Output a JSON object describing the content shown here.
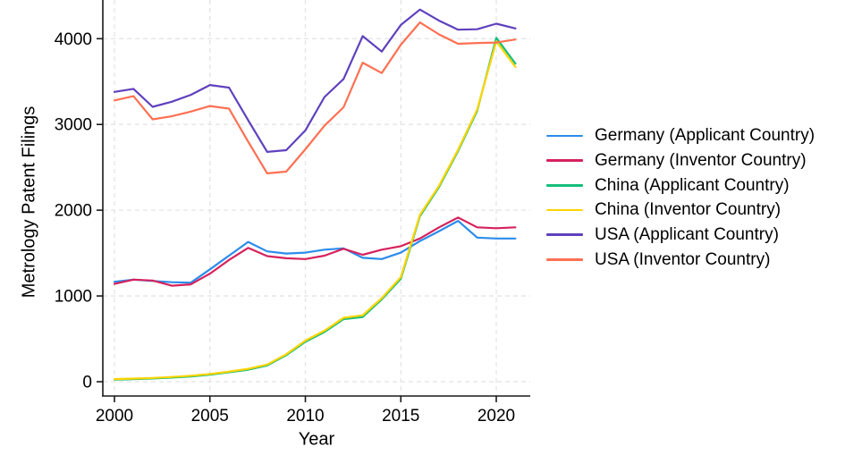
{
  "chart_data": {
    "type": "line",
    "title": "",
    "xlabel": "Year",
    "ylabel": "Metrology Patent Filings",
    "legend_position": "right-center",
    "grid": "light-gray-dashed",
    "background": "#ffffff",
    "x": [
      2000,
      2001,
      2002,
      2003,
      2004,
      2005,
      2006,
      2007,
      2008,
      2009,
      2010,
      2011,
      2012,
      2013,
      2014,
      2015,
      2016,
      2017,
      2018,
      2019,
      2020,
      2021
    ],
    "x_ticks": [
      2000,
      2005,
      2010,
      2015,
      2020
    ],
    "y_ticks": [
      0,
      1000,
      2000,
      3000,
      4000
    ],
    "xlim": [
      2000,
      2021
    ],
    "ylim_visible": [
      0,
      4450
    ],
    "note_top_cropped": true,
    "series": [
      {
        "id": "germany-applicant",
        "label": "Germany (Applicant Country)",
        "color": "#2b8ceb",
        "values": [
          1165,
          1190,
          1175,
          1160,
          1155,
          1310,
          1470,
          1630,
          1520,
          1495,
          1505,
          1540,
          1555,
          1445,
          1430,
          1505,
          1640,
          1755,
          1875,
          1680,
          1670,
          1670
        ]
      },
      {
        "id": "germany-inventor",
        "label": "Germany (Inventor Country)",
        "color": "#d6225c",
        "values": [
          1140,
          1190,
          1180,
          1120,
          1135,
          1260,
          1420,
          1560,
          1465,
          1440,
          1430,
          1470,
          1550,
          1480,
          1540,
          1580,
          1670,
          1800,
          1915,
          1800,
          1790,
          1800
        ]
      },
      {
        "id": "china-applicant",
        "label": "China (Applicant Country)",
        "color": "#12be7c",
        "values": [
          25,
          30,
          38,
          48,
          62,
          82,
          110,
          140,
          190,
          310,
          465,
          580,
          730,
          755,
          960,
          1200,
          1930,
          2270,
          2690,
          3160,
          4010,
          3710
        ]
      },
      {
        "id": "china-inventor",
        "label": "China (Inventor Country)",
        "color": "#ffd400",
        "values": [
          30,
          36,
          44,
          55,
          70,
          90,
          118,
          150,
          200,
          320,
          480,
          595,
          745,
          775,
          975,
          1220,
          1945,
          2285,
          2705,
          3175,
          3970,
          3670
        ]
      },
      {
        "id": "usa-applicant",
        "label": "USA (Applicant Country)",
        "color": "#5f41be",
        "values": [
          3380,
          3415,
          3205,
          3265,
          3345,
          3460,
          3430,
          3050,
          2680,
          2700,
          2930,
          3320,
          3530,
          4030,
          3850,
          4160,
          4340,
          4210,
          4105,
          4110,
          4175,
          4120
        ]
      },
      {
        "id": "usa-inventor",
        "label": "USA (Inventor Country)",
        "color": "#ff7052",
        "values": [
          3280,
          3330,
          3060,
          3095,
          3150,
          3215,
          3185,
          2800,
          2430,
          2450,
          2710,
          2985,
          3200,
          3720,
          3600,
          3930,
          4190,
          4050,
          3940,
          3950,
          3955,
          3990
        ]
      }
    ]
  }
}
